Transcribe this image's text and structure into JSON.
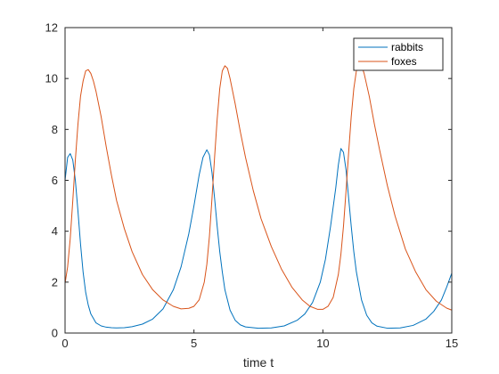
{
  "chart_data": {
    "type": "line",
    "xlabel": "time  t",
    "ylabel": "",
    "title": "",
    "xlim": [
      0,
      15
    ],
    "ylim": [
      0,
      12
    ],
    "xticks": [
      0,
      5,
      10,
      15
    ],
    "yticks": [
      0,
      2,
      4,
      6,
      8,
      10,
      12
    ],
    "xtick_labels": [
      "0",
      "5",
      "10",
      "15"
    ],
    "ytick_labels": [
      "0",
      "2",
      "4",
      "6",
      "8",
      "10",
      "12"
    ],
    "grid": false,
    "legend_position": "top-right",
    "series": [
      {
        "name": "rabbits",
        "color": "#0072BD",
        "x": [
          0,
          0.1,
          0.2,
          0.3,
          0.4,
          0.5,
          0.6,
          0.7,
          0.8,
          0.9,
          1.0,
          1.2,
          1.4,
          1.6,
          1.8,
          2.0,
          2.3,
          2.6,
          3.0,
          3.4,
          3.8,
          4.2,
          4.5,
          4.8,
          5.0,
          5.2,
          5.35,
          5.5,
          5.6,
          5.7,
          5.8,
          5.9,
          6.0,
          6.1,
          6.2,
          6.4,
          6.6,
          6.8,
          7.0,
          7.5,
          8.0,
          8.5,
          9.0,
          9.3,
          9.6,
          9.9,
          10.1,
          10.3,
          10.5,
          10.6,
          10.7,
          10.8,
          10.9,
          11.0,
          11.1,
          11.2,
          11.3,
          11.5,
          11.7,
          11.9,
          12.1,
          12.5,
          13.0,
          13.5,
          14.0,
          14.3,
          14.6,
          14.8,
          15.0
        ],
        "y": [
          6.0,
          6.9,
          7.05,
          6.8,
          6.0,
          4.8,
          3.5,
          2.4,
          1.6,
          1.1,
          0.75,
          0.4,
          0.28,
          0.23,
          0.21,
          0.2,
          0.21,
          0.25,
          0.35,
          0.55,
          0.95,
          1.7,
          2.6,
          3.9,
          5.0,
          6.2,
          6.9,
          7.2,
          7.0,
          6.3,
          5.3,
          4.2,
          3.2,
          2.4,
          1.7,
          0.9,
          0.5,
          0.32,
          0.24,
          0.19,
          0.2,
          0.28,
          0.5,
          0.75,
          1.2,
          2.0,
          2.9,
          4.2,
          5.7,
          6.6,
          7.25,
          7.1,
          6.4,
          5.3,
          4.2,
          3.2,
          2.4,
          1.3,
          0.7,
          0.4,
          0.27,
          0.19,
          0.2,
          0.3,
          0.55,
          0.85,
          1.3,
          1.8,
          2.35
        ]
      },
      {
        "name": "foxes",
        "color": "#D95319",
        "x": [
          0,
          0.1,
          0.2,
          0.3,
          0.4,
          0.5,
          0.6,
          0.7,
          0.8,
          0.9,
          1.0,
          1.1,
          1.2,
          1.4,
          1.6,
          1.8,
          2.0,
          2.3,
          2.6,
          3.0,
          3.4,
          3.8,
          4.2,
          4.5,
          4.8,
          5.0,
          5.2,
          5.4,
          5.5,
          5.6,
          5.7,
          5.8,
          5.9,
          6.0,
          6.1,
          6.2,
          6.3,
          6.4,
          6.6,
          6.8,
          7.0,
          7.3,
          7.6,
          8.0,
          8.4,
          8.8,
          9.2,
          9.5,
          9.8,
          10.0,
          10.2,
          10.4,
          10.6,
          10.7,
          10.8,
          10.9,
          11.0,
          11.1,
          11.2,
          11.3,
          11.4,
          11.5,
          11.6,
          11.8,
          12.0,
          12.2,
          12.5,
          12.8,
          13.2,
          13.6,
          14.0,
          14.4,
          14.8,
          15.0
        ],
        "y": [
          1.95,
          2.6,
          3.7,
          5.2,
          6.8,
          8.2,
          9.3,
          9.9,
          10.3,
          10.35,
          10.2,
          9.9,
          9.5,
          8.5,
          7.3,
          6.2,
          5.2,
          4.1,
          3.2,
          2.3,
          1.7,
          1.3,
          1.05,
          0.95,
          0.97,
          1.05,
          1.3,
          2.0,
          2.7,
          3.8,
          5.3,
          6.9,
          8.4,
          9.6,
          10.3,
          10.5,
          10.4,
          10.0,
          9.0,
          7.9,
          6.9,
          5.6,
          4.5,
          3.4,
          2.5,
          1.8,
          1.3,
          1.05,
          0.93,
          0.93,
          1.05,
          1.4,
          2.3,
          3.1,
          4.2,
          5.6,
          7.1,
          8.5,
          9.6,
          10.3,
          10.55,
          10.5,
          10.2,
          9.3,
          8.2,
          7.2,
          5.8,
          4.6,
          3.3,
          2.4,
          1.7,
          1.25,
          0.98,
          0.9
        ]
      }
    ]
  }
}
